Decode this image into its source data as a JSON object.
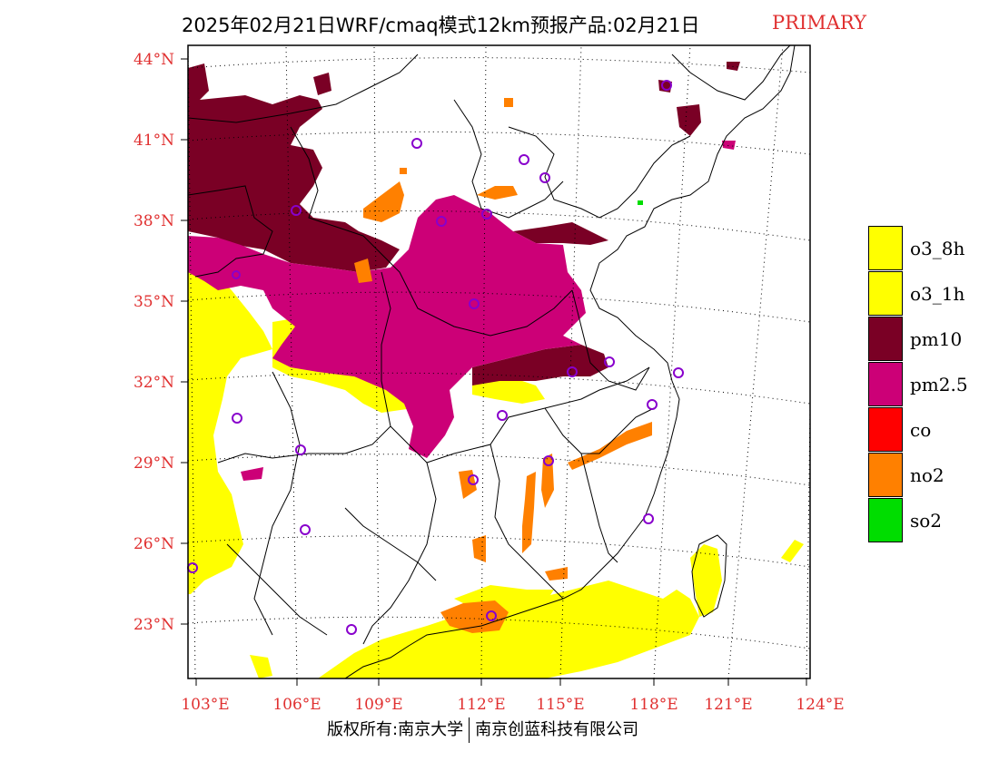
{
  "title": {
    "main": "2025年02月21日WRF/cmaq模式12km预报产品:02月21日",
    "tag": "PRIMARY"
  },
  "axes": {
    "lat_labels": [
      "44°N",
      "41°N",
      "38°N",
      "35°N",
      "32°N",
      "29°N",
      "26°N",
      "23°N"
    ],
    "lon_labels": [
      "103°E",
      "106°E",
      "109°E",
      "112°E",
      "115°E",
      "118°E",
      "121°E",
      "124°E"
    ]
  },
  "legend": {
    "items": [
      {
        "label": "o3_8h",
        "color": "#ffff00"
      },
      {
        "label": "o3_1h",
        "color": "#ffff00"
      },
      {
        "label": "pm10",
        "color": "#7a0025"
      },
      {
        "label": "pm2.5",
        "color": "#cc0077"
      },
      {
        "label": "co",
        "color": "#ff0000"
      },
      {
        "label": "no2",
        "color": "#ff8000"
      },
      {
        "label": "so2",
        "color": "#00dd00"
      }
    ]
  },
  "footer": {
    "left": "版权所有:南京大学",
    "right": "南京创蓝科技有限公司"
  },
  "colors": {
    "label_red": "#e03030",
    "pm10": "#7a0025",
    "pm25": "#cc0077",
    "o3": "#ffff00",
    "no2": "#ff8000",
    "so2": "#00dd00",
    "station_marker": "#8800cc"
  }
}
